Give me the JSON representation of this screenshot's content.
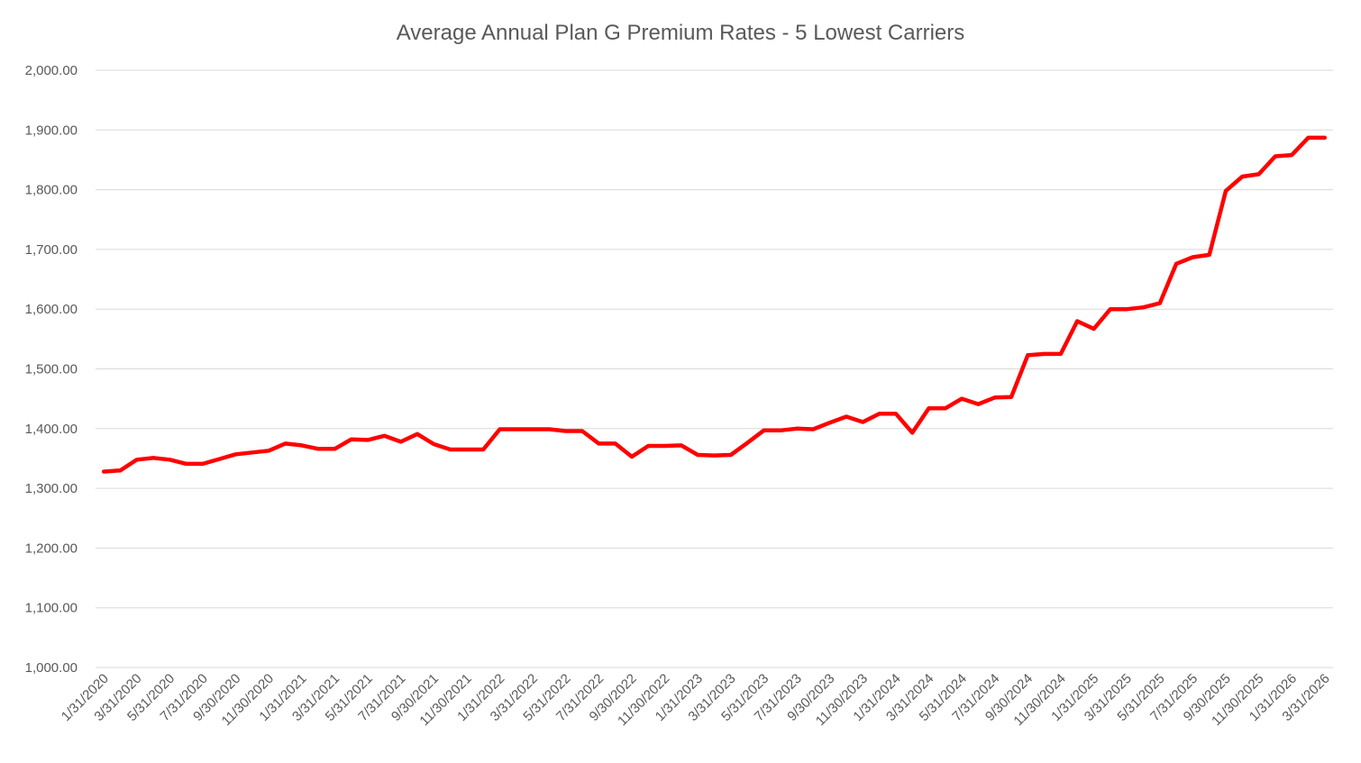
{
  "chart_data": {
    "type": "line",
    "title": "Average Annual Plan G Premium Rates - 5 Lowest Carriers",
    "xlabel": "",
    "ylabel": "",
    "ylim": [
      1000,
      2000
    ],
    "yticks": [
      "1,000.00",
      "1,100.00",
      "1,200.00",
      "1,300.00",
      "1,400.00",
      "1,500.00",
      "1,600.00",
      "1,700.00",
      "1,800.00",
      "1,900.00",
      "2,000.00"
    ],
    "grid": true,
    "legend": "none",
    "series_color": "#ff0000",
    "x_tick_labels": [
      "1/31/2020",
      "3/31/2020",
      "5/31/2020",
      "7/31/2020",
      "9/30/2020",
      "11/30/2020",
      "1/31/2021",
      "3/31/2021",
      "5/31/2021",
      "7/31/2021",
      "9/30/2021",
      "11/30/2021",
      "1/31/2022",
      "3/31/2022",
      "5/31/2022",
      "7/31/2022",
      "9/30/2022",
      "11/30/2022",
      "1/31/2023",
      "3/31/2023",
      "5/31/2023",
      "7/31/2023",
      "9/30/2023",
      "11/30/2023",
      "1/31/2024",
      "3/31/2024",
      "5/31/2024",
      "7/31/2024",
      "9/30/2024",
      "11/30/2024",
      "1/31/2025",
      "3/31/2025",
      "5/31/2025",
      "7/31/2025",
      "9/30/2025",
      "11/30/2025",
      "1/31/2026",
      "3/31/2026"
    ],
    "series": [
      {
        "values": [
          1328,
          1330,
          1348,
          1351,
          1348,
          1341,
          1341,
          1349,
          1357,
          1360,
          1363,
          1375,
          1372,
          1366,
          1366,
          1382,
          1381,
          1388,
          1378,
          1391,
          1374,
          1365,
          1365,
          1365,
          1399,
          1399,
          1399,
          1399,
          1396,
          1396,
          1375,
          1375,
          1353,
          1371,
          1371,
          1372,
          1356,
          1355,
          1356,
          1376,
          1397,
          1397,
          1400,
          1399,
          1410,
          1420,
          1411,
          1425,
          1425,
          1393,
          1434,
          1434,
          1450,
          1441,
          1452,
          1453,
          1523,
          1525,
          1525,
          1580,
          1567,
          1600,
          1600,
          1603,
          1610,
          1676,
          1687,
          1691,
          1798,
          1822,
          1826,
          1856,
          1858,
          1887,
          1887
        ]
      }
    ]
  }
}
